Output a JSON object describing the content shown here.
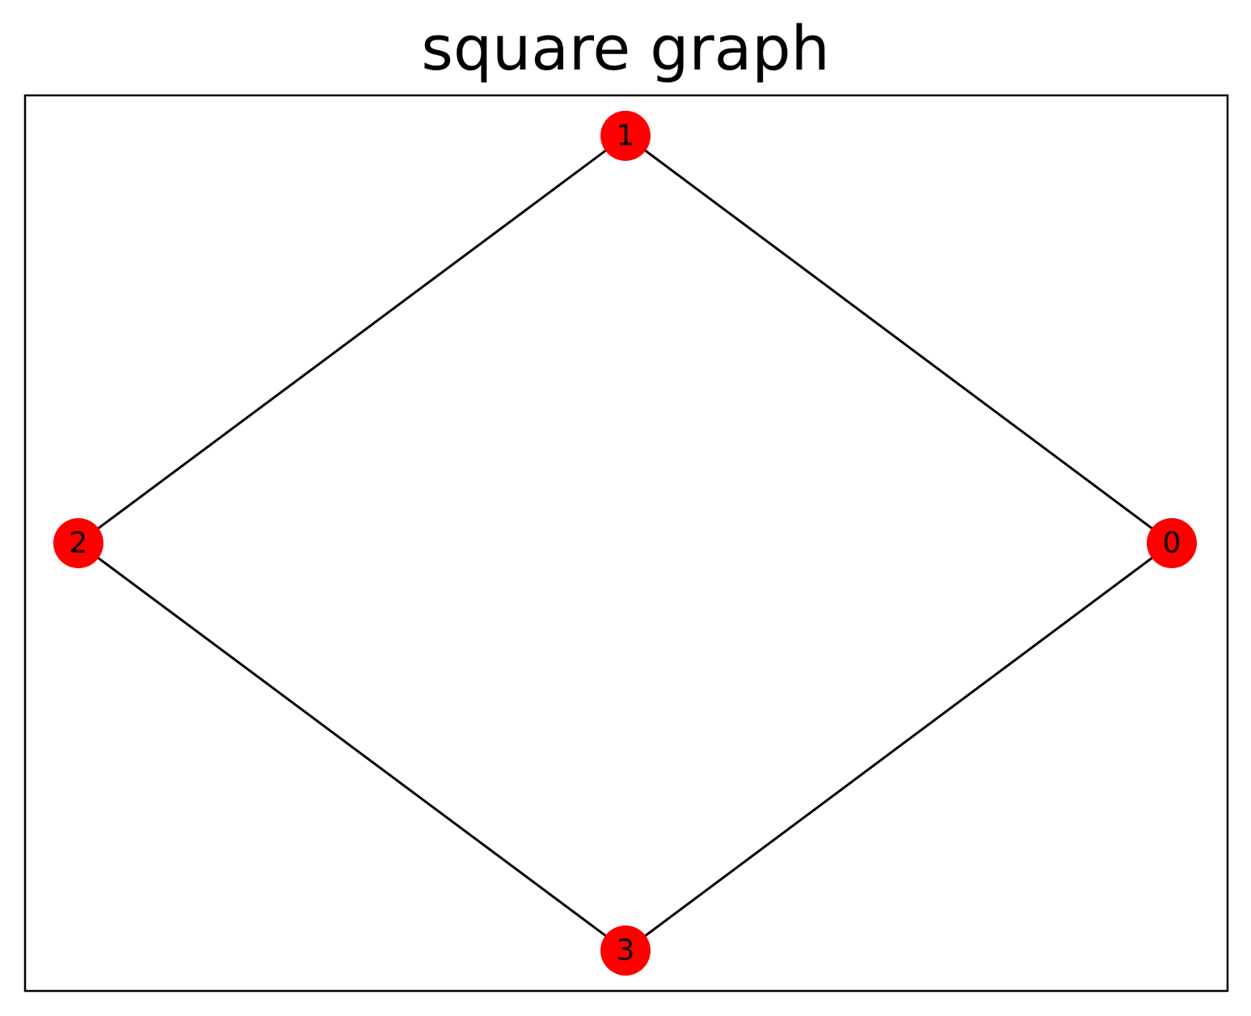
{
  "title": "square graph",
  "colors": {
    "node_fill": "#ff0000",
    "edge_stroke": "#000000",
    "frame_stroke": "#000000",
    "background": "#ffffff"
  },
  "graph": {
    "nodes": [
      {
        "id": "0",
        "label": "0"
      },
      {
        "id": "1",
        "label": "1"
      },
      {
        "id": "2",
        "label": "2"
      },
      {
        "id": "3",
        "label": "3"
      }
    ],
    "edges": [
      {
        "source": "0",
        "target": "1"
      },
      {
        "source": "1",
        "target": "2"
      },
      {
        "source": "2",
        "target": "3"
      },
      {
        "source": "3",
        "target": "0"
      }
    ]
  }
}
